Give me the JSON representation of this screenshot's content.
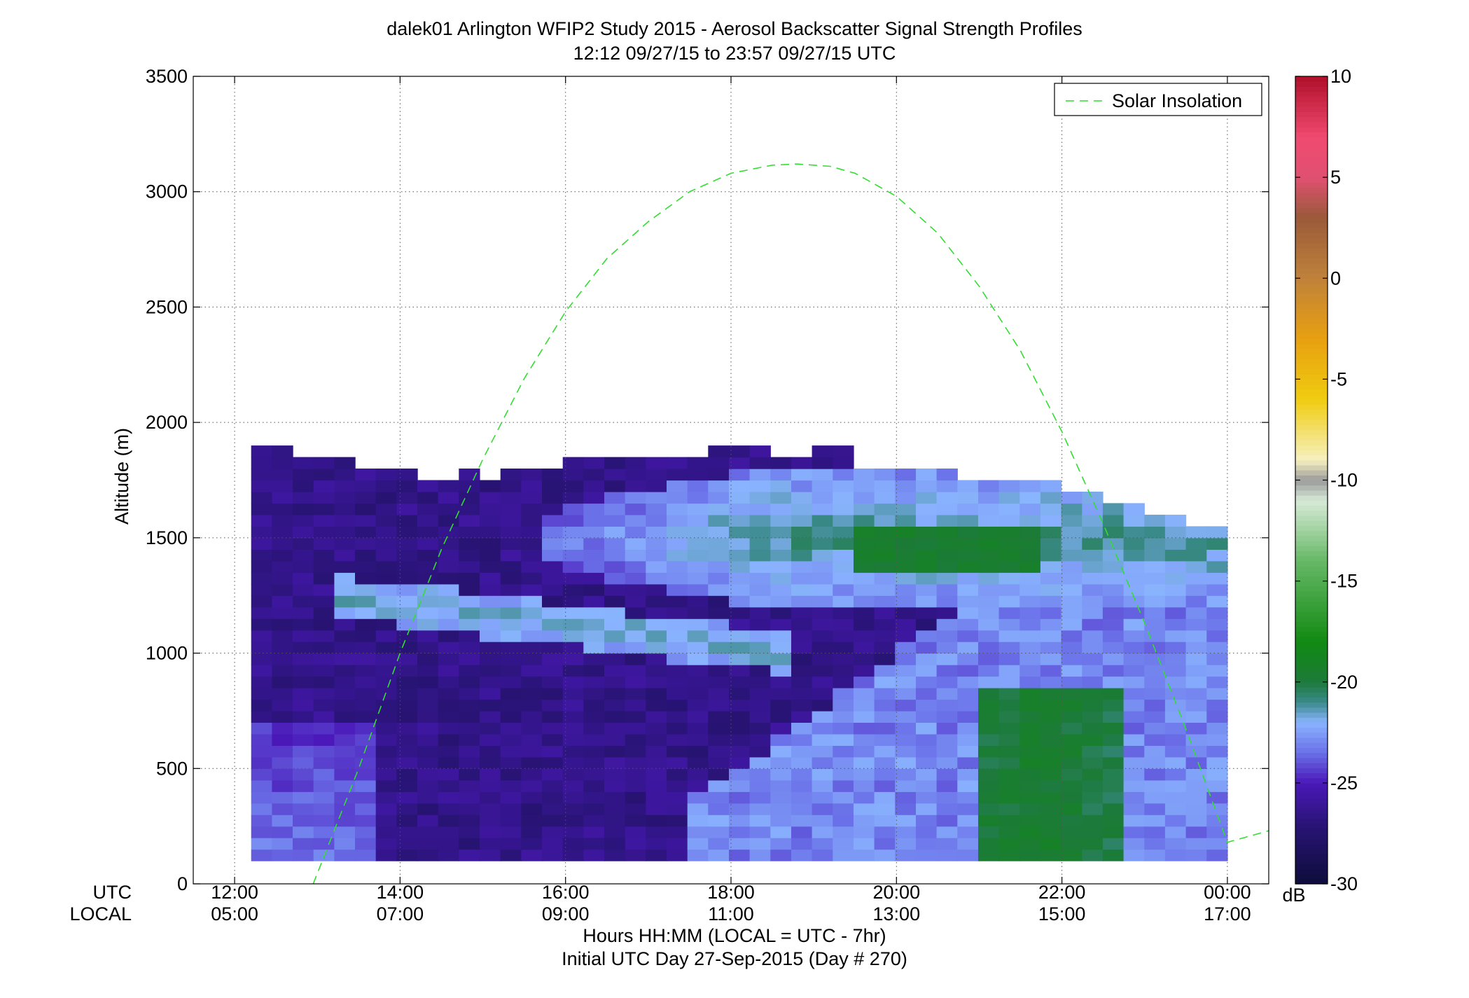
{
  "chart_data": {
    "type": "heatmap",
    "title": "dalek01 Arlington WFIP2 Study 2015 - Aerosol Backscatter Signal Strength Profiles",
    "subtitle": "12:12 09/27/15 to 23:57 09/27/15  UTC",
    "xlabel": "Hours HH:MM  (LOCAL = UTC - 7hr)",
    "xlabel2": "Initial UTC Day 27-Sep-2015 (Day # 270)",
    "ylabel": "Altitude (m)",
    "x_row_label_utc": "UTC",
    "x_row_label_local": "LOCAL",
    "x_range_hours_utc": [
      11.5,
      24.5
    ],
    "ylim": [
      0,
      3500
    ],
    "x_ticks_utc": [
      {
        "hour": 12,
        "utc": "12:00",
        "local": "05:00"
      },
      {
        "hour": 14,
        "utc": "14:00",
        "local": "07:00"
      },
      {
        "hour": 16,
        "utc": "16:00",
        "local": "09:00"
      },
      {
        "hour": 18,
        "utc": "18:00",
        "local": "11:00"
      },
      {
        "hour": 20,
        "utc": "20:00",
        "local": "13:00"
      },
      {
        "hour": 22,
        "utc": "22:00",
        "local": "15:00"
      },
      {
        "hour": 24,
        "utc": "00:00",
        "local": "17:00"
      }
    ],
    "y_ticks": [
      0,
      500,
      1000,
      1500,
      2000,
      2500,
      3000,
      3500
    ],
    "y_tick_labels": [
      "0",
      "500",
      "1000",
      "1500",
      "2000",
      "2500",
      "3000",
      "3500"
    ],
    "grid": true,
    "grid_style": "dotted",
    "colorbar": {
      "label": "dB",
      "range": [
        -30,
        10
      ],
      "ticks": [
        10,
        5,
        0,
        -5,
        -10,
        -15,
        -20,
        -25,
        -30
      ],
      "tick_labels": [
        "10",
        "5",
        "0",
        "-5",
        "-10",
        "-15",
        "-20",
        "-25",
        "-30"
      ],
      "stops": [
        {
          "v": -30,
          "color": "#0d0d3a"
        },
        {
          "v": -27,
          "color": "#2a1478"
        },
        {
          "v": -25,
          "color": "#4a18b8"
        },
        {
          "v": -23.5,
          "color": "#6a70e8"
        },
        {
          "v": -22,
          "color": "#8ab4ff"
        },
        {
          "v": -21,
          "color": "#3a8a8a"
        },
        {
          "v": -20,
          "color": "#1c7a3a"
        },
        {
          "v": -18,
          "color": "#118a11"
        },
        {
          "v": -14,
          "color": "#66b866"
        },
        {
          "v": -11,
          "color": "#d8ead8"
        },
        {
          "v": -10,
          "color": "#9a9a9a"
        },
        {
          "v": -9,
          "color": "#f6f0c0"
        },
        {
          "v": -6,
          "color": "#f0cc10"
        },
        {
          "v": -3,
          "color": "#e8a010"
        },
        {
          "v": 0,
          "color": "#c0823a"
        },
        {
          "v": 3,
          "color": "#9a5a3a"
        },
        {
          "v": 5,
          "color": "#e05070"
        },
        {
          "v": 7,
          "color": "#f04a70"
        },
        {
          "v": 10,
          "color": "#b0102a"
        }
      ]
    },
    "legend": {
      "position": "top-right",
      "entries": [
        {
          "name": "Solar Insolation",
          "style": "dashed",
          "color": "#33dd33"
        }
      ]
    },
    "solar_insolation": {
      "name": "Solar Insolation",
      "color": "#33dd33",
      "x": [
        12.95,
        13.5,
        14.0,
        14.5,
        15.0,
        15.5,
        16.0,
        16.5,
        17.0,
        17.5,
        18.0,
        18.5,
        18.8,
        19.2,
        19.5,
        20.0,
        20.5,
        21.0,
        21.5,
        22.0,
        22.5,
        23.0,
        23.5,
        24.0,
        24.5
      ],
      "y": [
        0,
        500,
        1000,
        1450,
        1840,
        2190,
        2480,
        2710,
        2870,
        3000,
        3080,
        3115,
        3120,
        3110,
        3080,
        2980,
        2820,
        2590,
        2310,
        1960,
        1560,
        1130,
        670,
        180,
        230
      ]
    },
    "heatmap": {
      "description": "Backscatter signal strength (dB) by UTC hour (x) and altitude in m (y)",
      "x_start_hours": 12.2,
      "x_end_hours": 24.0,
      "n_time_bins": 47,
      "y_start_m": 100,
      "bin_height_m": 50,
      "top_boundary_m": [
        [
          12.2,
          1900
        ],
        [
          12.7,
          1850
        ],
        [
          13.5,
          1800
        ],
        [
          14.2,
          1750
        ],
        [
          14.7,
          1800
        ],
        [
          15.0,
          1750
        ],
        [
          15.2,
          1800
        ],
        [
          16.0,
          1850
        ],
        [
          17.7,
          1900
        ],
        [
          18.6,
          1850
        ],
        [
          19.0,
          1900
        ],
        [
          19.5,
          1800
        ],
        [
          20.0,
          1800
        ],
        [
          20.7,
          1750
        ],
        [
          22.0,
          1700
        ],
        [
          22.5,
          1650
        ],
        [
          23.0,
          1600
        ],
        [
          23.5,
          1550
        ]
      ],
      "features": [
        {
          "name": "background_low",
          "dB": -26.5
        },
        {
          "name": "residual_layer",
          "t_start": 13.2,
          "t_end": 18.7,
          "z_start": 1250,
          "z_end": 1000,
          "thickness_m": 180,
          "dB": -21.5
        },
        {
          "name": "upper_aerosol_layer",
          "t_start": 15.8,
          "t_end": 24.0,
          "z_center": 1500,
          "thickness_m": 300,
          "dB": -21.0
        },
        {
          "name": "surface_layer",
          "t_start": 12.2,
          "t_end": 13.8,
          "z_max": 700,
          "dB": -23.0
        },
        {
          "name": "convective_mixed_layer",
          "t_start": 17.5,
          "t_end": 24.0,
          "z_max": 1500,
          "dB": -23.0
        },
        {
          "name": "plume_core",
          "t_start": 21.0,
          "t_end": 22.8,
          "z_max": 850,
          "dB": -19.5
        },
        {
          "name": "upper_plume",
          "t_start": 19.5,
          "t_end": 21.8,
          "z_center": 1450,
          "dB": -19.5
        }
      ]
    }
  }
}
